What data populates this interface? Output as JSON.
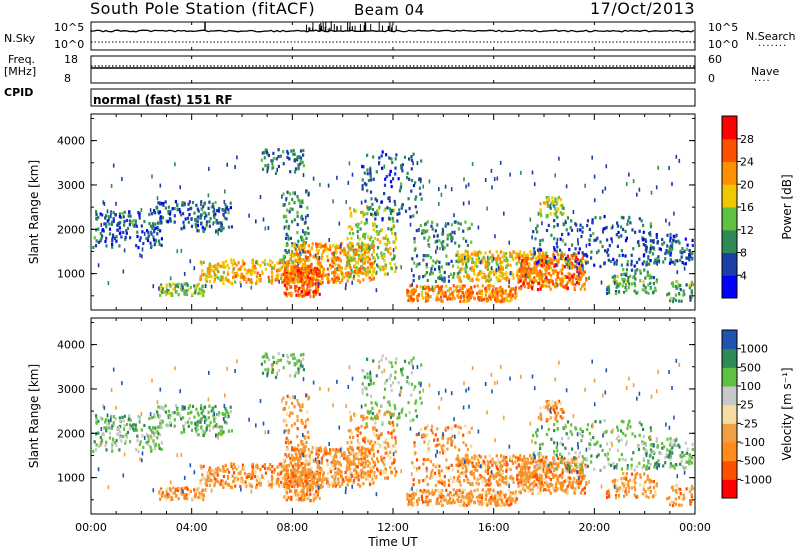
{
  "header": {
    "station": "South Pole Station (fitACF)",
    "beam": "Beam 04",
    "date": "17/Oct/2013"
  },
  "top_panels": {
    "nsky_label": "N.Sky",
    "nsky_ticks": [
      "10^5",
      "10^0"
    ],
    "nsearch_label": "N.Search",
    "nsearch_ticks": [
      "10^5",
      "10^0"
    ],
    "freq_label": "Freq.",
    "freq_unit": "[MHz]",
    "freq_ticks": [
      18,
      8
    ],
    "nave_label": "Nave",
    "nave_ticks": [
      60,
      0
    ],
    "cpid_label": "CPID",
    "cpid_text": "normal (fast) 151 RF"
  },
  "chart_data": [
    {
      "type": "heatmap",
      "title": "",
      "ylabel": "Slant Range [km]",
      "ylim": [
        180,
        4600
      ],
      "yticks": [
        1000,
        2000,
        3000,
        4000
      ],
      "xlabel": "",
      "xlim": [
        0,
        24
      ],
      "xtick_labels": [
        "00:00",
        "04:00",
        "08:00",
        "12:00",
        "16:00",
        "20:00",
        "00:00"
      ],
      "colorbar": {
        "label": "Power [dB]",
        "ticks": [
          4,
          8,
          12,
          16,
          20,
          24,
          28
        ],
        "colors": [
          "#0000ff",
          "#1b3fa6",
          "#2e8b57",
          "#60c040",
          "#f0c800",
          "#ff9000",
          "#ff5000",
          "#ff0000"
        ]
      }
    },
    {
      "type": "heatmap",
      "title": "",
      "ylabel": "Slant Range [km]",
      "ylim": [
        180,
        4600
      ],
      "yticks": [
        1000,
        2000,
        3000,
        4000
      ],
      "xlabel": "Time UT",
      "xlim": [
        0,
        24
      ],
      "xtick_labels": [
        "00:00",
        "04:00",
        "08:00",
        "12:00",
        "16:00",
        "20:00",
        "00:00"
      ],
      "colorbar": {
        "label": "Velocity [m s⁻¹]",
        "ticks": [
          "1000",
          "500",
          "100",
          "25",
          "-25",
          "-100",
          "-500",
          "-1000"
        ],
        "colors": [
          "#ff0000",
          "#ff5000",
          "#ff8c1a",
          "#f0a040",
          "#f5dca0",
          "#c8c8c8",
          "#60c040",
          "#2e8b57",
          "#1f55b0"
        ]
      }
    }
  ]
}
